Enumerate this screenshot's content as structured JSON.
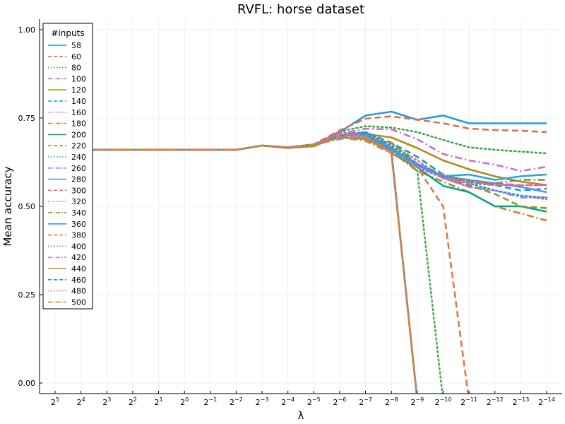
{
  "chart_data": {
    "type": "line",
    "title": "RVFL: horse dataset",
    "xlabel": "λ",
    "ylabel": "Mean accuracy",
    "x_ticks": [
      {
        "base": "2",
        "exp": "5"
      },
      {
        "base": "2",
        "exp": "4"
      },
      {
        "base": "2",
        "exp": "3"
      },
      {
        "base": "2",
        "exp": "2"
      },
      {
        "base": "2",
        "exp": "1"
      },
      {
        "base": "2",
        "exp": "0"
      },
      {
        "base": "2",
        "exp": "−1"
      },
      {
        "base": "2",
        "exp": "−2"
      },
      {
        "base": "2",
        "exp": "−3"
      },
      {
        "base": "2",
        "exp": "−4"
      },
      {
        "base": "2",
        "exp": "−5"
      },
      {
        "base": "2",
        "exp": "−6"
      },
      {
        "base": "2",
        "exp": "−7"
      },
      {
        "base": "2",
        "exp": "−8"
      },
      {
        "base": "2",
        "exp": "−9"
      },
      {
        "base": "2",
        "exp": "−10"
      },
      {
        "base": "2",
        "exp": "−11"
      },
      {
        "base": "2",
        "exp": "−12"
      },
      {
        "base": "2",
        "exp": "−13"
      },
      {
        "base": "2",
        "exp": "−14"
      }
    ],
    "x": [
      5,
      4,
      3,
      2,
      1,
      0,
      -1,
      -2,
      -3,
      -4,
      -5,
      -6,
      -7,
      -8,
      -9,
      -10,
      -11,
      -12,
      -13,
      -14
    ],
    "y_ticks": [
      "0.00",
      "0.25",
      "0.50",
      "0.75",
      "1.00"
    ],
    "y_tick_values": [
      0.0,
      0.25,
      0.5,
      0.75,
      1.0
    ],
    "ylim": [
      -0.03,
      1.03
    ],
    "xlim": [
      5.6,
      -14.6
    ],
    "x_scale": "log2 (decreasing)",
    "grid": true,
    "legend_title": "#inputs",
    "legend_position": "top-left",
    "series": [
      {
        "name": "58",
        "color": "#1f9be0",
        "dash": "solid",
        "values": [
          0.66,
          0.66,
          0.66,
          0.66,
          0.66,
          0.66,
          0.66,
          0.66,
          0.672,
          0.667,
          0.672,
          0.71,
          0.757,
          0.768,
          0.745,
          0.757,
          0.735,
          0.735,
          0.735,
          0.735
        ]
      },
      {
        "name": "60",
        "color": "#e26f46",
        "dash": "dashed",
        "values": [
          0.66,
          0.66,
          0.66,
          0.66,
          0.66,
          0.66,
          0.66,
          0.66,
          0.672,
          0.667,
          0.675,
          0.715,
          0.748,
          0.755,
          0.745,
          0.735,
          0.72,
          0.716,
          0.714,
          0.71
        ]
      },
      {
        "name": "80",
        "color": "#3da44d",
        "dash": "dotted",
        "values": [
          0.66,
          0.66,
          0.66,
          0.66,
          0.66,
          0.66,
          0.66,
          0.66,
          0.672,
          0.667,
          0.675,
          0.712,
          0.727,
          0.723,
          0.71,
          0.688,
          0.667,
          0.66,
          0.655,
          0.65
        ]
      },
      {
        "name": "100",
        "color": "#c371d2",
        "dash": "dashdot",
        "values": [
          0.66,
          0.66,
          0.66,
          0.66,
          0.66,
          0.66,
          0.66,
          0.66,
          0.672,
          0.667,
          0.672,
          0.705,
          0.72,
          0.718,
          0.69,
          0.648,
          0.63,
          0.618,
          0.6,
          0.612
        ]
      },
      {
        "name": "120",
        "color": "#ac8d18",
        "dash": "solid",
        "values": [
          0.66,
          0.66,
          0.66,
          0.66,
          0.66,
          0.66,
          0.66,
          0.66,
          0.672,
          0.665,
          0.67,
          0.7,
          0.705,
          0.695,
          0.665,
          0.63,
          0.605,
          0.585,
          0.57,
          0.56
        ]
      },
      {
        "name": "140",
        "color": "#00a9b4",
        "dash": "dashed",
        "values": [
          0.66,
          0.66,
          0.66,
          0.66,
          0.66,
          0.66,
          0.66,
          0.66,
          0.672,
          0.667,
          0.675,
          0.7,
          0.71,
          0.68,
          0.64,
          0.59,
          0.57,
          0.56,
          0.545,
          0.55
        ]
      },
      {
        "name": "160",
        "color": "#ed5e93",
        "dash": "dotted",
        "values": [
          0.66,
          0.66,
          0.66,
          0.66,
          0.66,
          0.66,
          0.66,
          0.66,
          0.672,
          0.667,
          0.675,
          0.7,
          0.71,
          0.675,
          0.63,
          0.58,
          0.555,
          0.545,
          0.53,
          0.52
        ]
      },
      {
        "name": "180",
        "color": "#c68125",
        "dash": "dashdot",
        "values": [
          0.66,
          0.66,
          0.66,
          0.66,
          0.66,
          0.66,
          0.66,
          0.66,
          0.672,
          0.667,
          0.675,
          0.695,
          0.705,
          0.655,
          0.6,
          0.57,
          0.54,
          0.5,
          0.48,
          0.46
        ]
      },
      {
        "name": "200",
        "color": "#00a98d",
        "dash": "solid",
        "values": [
          0.66,
          0.66,
          0.66,
          0.66,
          0.66,
          0.66,
          0.66,
          0.66,
          0.672,
          0.665,
          0.675,
          0.7,
          0.708,
          0.65,
          0.61,
          0.558,
          0.54,
          0.5,
          0.5,
          0.485
        ]
      },
      {
        "name": "220",
        "color": "#8e971e",
        "dash": "dashed",
        "values": [
          0.66,
          0.66,
          0.66,
          0.66,
          0.66,
          0.66,
          0.66,
          0.66,
          0.672,
          0.667,
          0.675,
          0.7,
          0.69,
          0.68,
          0.62,
          0.58,
          0.56,
          0.535,
          0.5,
          0.495
        ]
      },
      {
        "name": "240",
        "color": "#00a8cb",
        "dash": "dotted",
        "values": [
          0.66,
          0.66,
          0.66,
          0.66,
          0.66,
          0.66,
          0.66,
          0.66,
          0.672,
          0.667,
          0.675,
          0.705,
          0.71,
          0.67,
          0.62,
          0.585,
          0.565,
          0.545,
          0.53,
          0.525
        ]
      },
      {
        "name": "260",
        "color": "#9b7fe8",
        "dash": "dashdot",
        "values": [
          0.66,
          0.66,
          0.66,
          0.66,
          0.66,
          0.66,
          0.66,
          0.66,
          0.672,
          0.667,
          0.675,
          0.69,
          0.7,
          0.66,
          0.615,
          0.58,
          0.555,
          0.545,
          0.525,
          0.525
        ]
      },
      {
        "name": "280",
        "color": "#608cf6",
        "dash": "solid",
        "values": [
          0.66,
          0.66,
          0.66,
          0.66,
          0.66,
          0.66,
          0.66,
          0.66,
          0.672,
          0.667,
          0.675,
          0.7,
          0.705,
          0.665,
          0.615,
          0.585,
          0.575,
          0.565,
          0.555,
          0.54
        ]
      },
      {
        "name": "300",
        "color": "#f05f73",
        "dash": "dashed",
        "values": [
          0.66,
          0.66,
          0.66,
          0.66,
          0.66,
          0.66,
          0.66,
          0.66,
          0.672,
          0.667,
          0.675,
          0.7,
          0.705,
          0.66,
          0.62,
          0.59,
          0.57,
          0.565,
          0.56,
          0.56
        ]
      },
      {
        "name": "320",
        "color": "#dd64b5",
        "dash": "dotted",
        "values": [
          0.66,
          0.66,
          0.66,
          0.66,
          0.66,
          0.66,
          0.66,
          0.66,
          0.672,
          0.667,
          0.675,
          0.71,
          0.705,
          0.65,
          0.61,
          0.58,
          0.565,
          0.56,
          0.56,
          0.56
        ]
      },
      {
        "name": "340",
        "color": "#6b9d37",
        "dash": "dashdot",
        "values": [
          0.66,
          0.66,
          0.66,
          0.66,
          0.66,
          0.66,
          0.66,
          0.66,
          0.672,
          0.667,
          0.675,
          0.7,
          0.69,
          0.66,
          0.62,
          0.585,
          0.57,
          0.565,
          0.575,
          0.575
        ]
      },
      {
        "name": "360",
        "color": "#29a3e3",
        "dash": "solid",
        "values": [
          0.66,
          0.66,
          0.66,
          0.66,
          0.66,
          0.66,
          0.66,
          0.66,
          0.672,
          0.667,
          0.675,
          0.7,
          0.7,
          0.66,
          0.62,
          0.585,
          0.59,
          0.575,
          0.585,
          0.59
        ]
      },
      {
        "name": "380",
        "color": "#e6754a",
        "dash": "dashed",
        "values": [
          0.66,
          0.66,
          0.66,
          0.66,
          0.66,
          0.66,
          0.66,
          0.66,
          0.672,
          0.667,
          0.675,
          0.7,
          0.69,
          0.655,
          0.61,
          0.5,
          -0.05,
          null,
          null,
          null
        ]
      },
      {
        "name": "400",
        "color": "#4aab52",
        "dash": "dotted",
        "values": [
          0.66,
          0.66,
          0.66,
          0.66,
          0.66,
          0.66,
          0.66,
          0.66,
          0.672,
          0.667,
          0.675,
          0.695,
          0.695,
          0.66,
          0.6,
          -0.05,
          null,
          null,
          null,
          null
        ]
      },
      {
        "name": "420",
        "color": "#c97fd6",
        "dash": "dashdot",
        "values": [
          0.66,
          0.66,
          0.66,
          0.66,
          0.66,
          0.66,
          0.66,
          0.66,
          0.672,
          0.667,
          0.675,
          0.7,
          0.695,
          0.65,
          -0.05,
          null,
          null,
          null,
          null,
          null
        ]
      },
      {
        "name": "440",
        "color": "#b0931f",
        "dash": "solid",
        "values": [
          0.66,
          0.66,
          0.66,
          0.66,
          0.66,
          0.66,
          0.66,
          0.66,
          0.672,
          0.665,
          0.672,
          0.695,
          0.69,
          0.655,
          -0.05,
          null,
          null,
          null,
          null,
          null
        ]
      },
      {
        "name": "460",
        "color": "#15aab5",
        "dash": "dashed",
        "values": [
          0.66,
          0.66,
          0.66,
          0.66,
          0.66,
          0.66,
          0.66,
          0.66,
          0.672,
          0.667,
          0.675,
          0.7,
          0.705,
          0.66,
          -0.05,
          null,
          null,
          null,
          null,
          null
        ]
      },
      {
        "name": "480",
        "color": "#ee6697",
        "dash": "dotted",
        "values": [
          0.66,
          0.66,
          0.66,
          0.66,
          0.66,
          0.66,
          0.66,
          0.66,
          0.672,
          0.667,
          0.675,
          0.705,
          0.7,
          0.655,
          -0.05,
          null,
          null,
          null,
          null,
          null
        ]
      },
      {
        "name": "500",
        "color": "#c98a35",
        "dash": "dashdot",
        "values": [
          0.66,
          0.66,
          0.66,
          0.66,
          0.66,
          0.66,
          0.66,
          0.66,
          0.672,
          0.667,
          0.675,
          0.695,
          0.685,
          0.65,
          -0.05,
          null,
          null,
          null,
          null,
          null
        ]
      }
    ]
  }
}
